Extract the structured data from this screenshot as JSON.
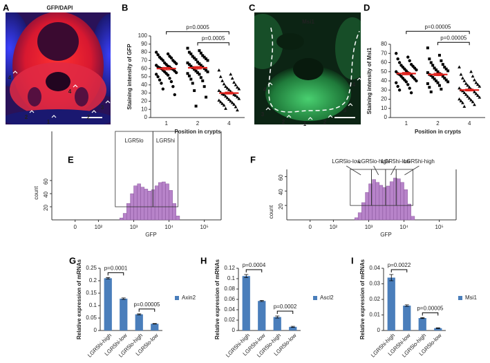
{
  "panel_labels": [
    "A",
    "B",
    "C",
    "D",
    "E",
    "F",
    "G",
    "H",
    "I"
  ],
  "images": [
    {
      "title_parts": [
        "GFP",
        "/DAPI"
      ],
      "labels": [
        "4",
        "4",
        "3",
        "2",
        "2",
        "1"
      ]
    },
    {
      "title": "Msi1",
      "labels": [
        "4",
        "3",
        "2",
        "1",
        "2",
        "3",
        "4"
      ]
    }
  ],
  "chart_data": [
    {
      "type": "strip",
      "xlabel": "Position in crypts",
      "ylabel": "Staining intensity of GFP",
      "categories": [
        "1",
        "2",
        "4"
      ],
      "markers": [
        "circle",
        "square",
        "triangle"
      ],
      "color": "#000000",
      "mean_color": "#e0201b",
      "values": [
        [
          80,
          78,
          77,
          75,
          74,
          73,
          72,
          70,
          70,
          68,
          67,
          66,
          65,
          64,
          63,
          62,
          62,
          61,
          60,
          60,
          59,
          58,
          57,
          56,
          55,
          54,
          53,
          52,
          50,
          48,
          46,
          44,
          42,
          38,
          35,
          28
        ],
        [
          85,
          82,
          80,
          79,
          78,
          76,
          75,
          74,
          73,
          72,
          71,
          70,
          68,
          67,
          66,
          65,
          64,
          63,
          62,
          61,
          60,
          59,
          58,
          57,
          56,
          55,
          54,
          53,
          51,
          49,
          47,
          45,
          42,
          38,
          33,
          25,
          14
        ],
        [
          58,
          53,
          50,
          48,
          45,
          43,
          41,
          40,
          38,
          37,
          36,
          35,
          34,
          33,
          32,
          31,
          30,
          29,
          28,
          28,
          27,
          26,
          25,
          24,
          23,
          22,
          21,
          20,
          19,
          18,
          17,
          16,
          15,
          13,
          11,
          9
        ]
      ],
      "means": [
        60,
        61,
        30
      ],
      "errors": [
        1.5,
        1.5,
        1.2
      ],
      "ylim": [
        0,
        100
      ],
      "yticks": [
        0,
        10,
        20,
        30,
        40,
        50,
        60,
        70,
        80,
        90,
        100
      ],
      "annotations": [
        {
          "text": "p=0.0005",
          "between": [
            0,
            2
          ]
        },
        {
          "text": "p=0.0005",
          "between": [
            1,
            2
          ]
        }
      ]
    },
    {
      "type": "strip",
      "xlabel": "Position in crypts",
      "ylabel": "Staining intensity of Msi1",
      "categories": [
        "1",
        "2",
        "4"
      ],
      "markers": [
        "circle",
        "square",
        "triangle"
      ],
      "color": "#000000",
      "mean_color": "#e0201b",
      "values": [
        [
          70,
          66,
          64,
          62,
          60,
          58,
          57,
          56,
          55,
          54,
          53,
          52,
          51,
          50,
          49,
          48,
          48,
          47,
          46,
          45,
          44,
          43,
          42,
          41,
          40,
          39,
          38,
          36,
          34,
          32,
          30,
          27
        ],
        [
          76,
          68,
          64,
          62,
          60,
          58,
          57,
          55,
          54,
          53,
          52,
          51,
          50,
          49,
          48,
          47,
          47,
          46,
          45,
          44,
          43,
          42,
          41,
          40,
          39,
          38,
          37,
          35,
          33,
          31,
          28
        ],
        [
          55,
          50,
          47,
          45,
          43,
          41,
          40,
          38,
          37,
          36,
          35,
          34,
          33,
          32,
          31,
          30,
          30,
          29,
          28,
          27,
          26,
          25,
          24,
          23,
          22,
          21,
          20,
          19,
          18,
          17,
          16,
          14,
          12
        ]
      ],
      "means": [
        48,
        47,
        30
      ],
      "errors": [
        1.3,
        1.3,
        1
      ],
      "ylim": [
        0,
        80
      ],
      "yticks": [
        0,
        10,
        20,
        30,
        40,
        50,
        60,
        70,
        80
      ],
      "annotations": [
        {
          "text": "p=0.00005",
          "between": [
            0,
            2
          ]
        },
        {
          "text": "p=0.00005",
          "between": [
            1,
            2
          ]
        }
      ]
    },
    {
      "type": "histogram",
      "xlabel": "GFP",
      "ylabel": "count",
      "xscale": "symlog",
      "color": "#b783c9",
      "edge_color": "#7d4a91",
      "bins": [
        400,
        500,
        630,
        800,
        1000,
        1260,
        1580,
        2000,
        2510,
        3160,
        3980,
        5010,
        6310,
        7940,
        10000,
        12600,
        15800,
        20000
      ],
      "counts": [
        3,
        10,
        25,
        40,
        52,
        55,
        50,
        47,
        44,
        46,
        52,
        57,
        58,
        55,
        45,
        25,
        6
      ],
      "xlim": [
        -100,
        300000
      ],
      "ylim": [
        0,
        135
      ],
      "xticks": [
        0,
        {
          "value": 100,
          "label": "10²"
        },
        {
          "value": 1000,
          "label": "10³"
        },
        {
          "value": 10000,
          "label": "10⁴"
        },
        {
          "value": 100000,
          "label": "10⁵"
        }
      ],
      "yticks": [
        20,
        40,
        60
      ],
      "gate_ymin": 20,
      "gate_label_position": "inside",
      "gates": [
        {
          "label": "LGR5lo",
          "range": [
            300,
            3500
          ]
        },
        {
          "label": "LGR5hi",
          "range": [
            3500,
            18000
          ]
        }
      ]
    },
    {
      "type": "histogram",
      "xlabel": "GFP",
      "ylabel": "count",
      "xscale": "symlog",
      "color": "#b783c9",
      "edge_color": "#7d4a91",
      "bins": [
        400,
        500,
        630,
        800,
        1000,
        1260,
        1580,
        2000,
        2510,
        3160,
        3980,
        5010,
        6310,
        7940,
        10000,
        12600,
        15800,
        20000
      ],
      "counts": [
        3,
        10,
        24,
        38,
        50,
        56,
        52,
        48,
        45,
        47,
        53,
        58,
        57,
        52,
        42,
        22,
        5
      ],
      "xlim": [
        -100,
        300000
      ],
      "ylim": [
        0,
        70
      ],
      "xticks": [
        0,
        {
          "value": 100,
          "label": "10²"
        },
        {
          "value": 1000,
          "label": "10³"
        },
        {
          "value": 10000,
          "label": "10⁴"
        },
        {
          "value": 100000,
          "label": "10⁵"
        }
      ],
      "yticks": [
        20,
        40,
        60
      ],
      "gate_ymin": 20,
      "gate_label_position": "above",
      "gates": [
        {
          "label": "LGR5lo-low",
          "range": [
            300,
            1200
          ]
        },
        {
          "label": "LGR5lo-high",
          "range": [
            1200,
            3000
          ]
        },
        {
          "label": "LGR5hi-low",
          "range": [
            3000,
            6000
          ]
        },
        {
          "label": "LGR5hi-high",
          "range": [
            6000,
            18000
          ]
        }
      ]
    },
    {
      "type": "bar",
      "ylabel": "Relative expression of mRNAs",
      "categories": [
        "LGR5hi-high",
        "LGR5hi-low",
        "LGR5lo-high",
        "LGR5lo-low"
      ],
      "series": [
        {
          "name": "Axin2",
          "color": "#4a7ebb",
          "values": [
            0.21,
            0.128,
            0.065,
            0.027
          ],
          "errors": [
            0.003,
            0.003,
            0.002,
            0.001
          ]
        }
      ],
      "ylim": [
        0,
        0.25
      ],
      "yticks": [
        0,
        0.05,
        0.1,
        0.15,
        0.2,
        0.25
      ],
      "annotations": [
        {
          "text": "p=0.0001",
          "between": [
            0,
            1
          ]
        },
        {
          "text": "p=0.00005",
          "between": [
            2,
            3
          ]
        }
      ]
    },
    {
      "type": "bar",
      "ylabel": "Relative expression of mRNAs",
      "categories": [
        "LGR5hi-high",
        "LGR5hi-low",
        "LGR5lo-high",
        "LGR5lo-low"
      ],
      "series": [
        {
          "name": "Ascl2",
          "color": "#4a7ebb",
          "values": [
            0.105,
            0.057,
            0.026,
            0.007
          ],
          "errors": [
            0.003,
            0.001,
            0.002,
            0.001
          ]
        }
      ],
      "ylim": [
        0,
        0.12
      ],
      "yticks": [
        0,
        0.02,
        0.04,
        0.06,
        0.08,
        0.1,
        0.12
      ],
      "annotations": [
        {
          "text": "p=0.0004",
          "between": [
            0,
            1
          ]
        },
        {
          "text": "p=0.0002",
          "between": [
            2,
            3
          ]
        }
      ]
    },
    {
      "type": "bar",
      "ylabel": "Relative expression of mRNAs",
      "categories": [
        "LGR5hi-high",
        "LGR5hi-low",
        "LGR5lo-high",
        "LGR5lo-low"
      ],
      "series": [
        {
          "name": "Msi1",
          "color": "#4a7ebb",
          "values": [
            0.034,
            0.016,
            0.008,
            0.0015
          ],
          "errors": [
            0.002,
            0.0005,
            0.0003,
            0.0002
          ]
        }
      ],
      "ylim": [
        0,
        0.04
      ],
      "yticks": [
        0,
        0.01,
        0.02,
        0.03,
        0.04
      ],
      "annotations": [
        {
          "text": "p=0.0022",
          "between": [
            0,
            1
          ]
        },
        {
          "text": "p=0.00005",
          "between": [
            2,
            3
          ]
        }
      ]
    }
  ]
}
